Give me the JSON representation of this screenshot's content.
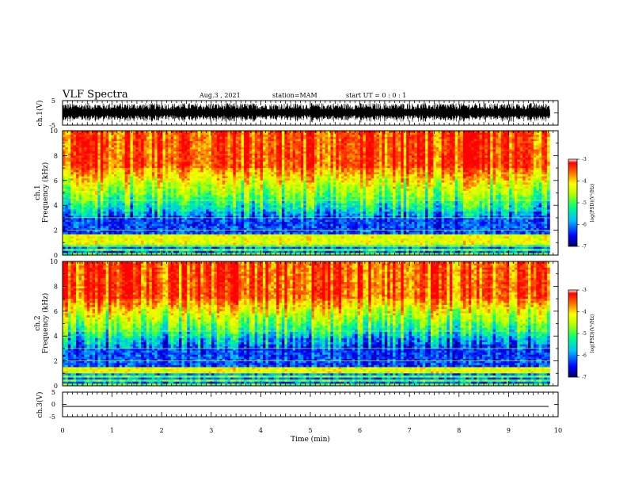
{
  "header": {
    "title": "VLF Spectra",
    "date": "Aug.3  , 2021",
    "station": "station=MAM",
    "start_ut": "start  UT  =   0 : 0  : 1"
  },
  "chart_data": {
    "type": "heatmap",
    "x": {
      "label": "Time  (min)",
      "range": [
        0,
        10
      ],
      "ticks": [
        "0",
        "1",
        "2",
        "3",
        "4",
        "5",
        "6",
        "7",
        "8",
        "9",
        "10"
      ],
      "data_end": 9.83
    },
    "panels": [
      {
        "id": "ch1_waveform",
        "type": "line",
        "ylabel": "ch.1(V)",
        "ylim": [
          -5,
          5
        ],
        "yticks": [
          "5",
          "-5"
        ],
        "description_values": {
          "min_v": -5,
          "max_v": 5,
          "noise_amplitude_v": 4
        }
      },
      {
        "id": "ch1_spectrogram",
        "type": "heatmap",
        "ylabel": "ch.1\nFrequency  (kHz)",
        "ylabel_lines": [
          "ch.1",
          "Frequency  (kHz)"
        ],
        "ylim": [
          0,
          10
        ],
        "yticks": [
          "0",
          "2",
          "4",
          "6",
          "8",
          "10"
        ],
        "colorbar": {
          "label": "log(PSD)(V²/Hz)",
          "range": [
            -7,
            -3
          ],
          "ticks": [
            "-3",
            "-4",
            "-5",
            "-6",
            "-7"
          ]
        },
        "bands_khz": {
          "strong_low": [
            0.9,
            1.6
          ],
          "quiet_trough": [
            1.7,
            3.2
          ],
          "rise_start": 3.5,
          "saturated_above": 7.0
        }
      },
      {
        "id": "ch2_spectrogram",
        "type": "heatmap",
        "ylabel_lines": [
          "ch.2",
          "Frequency  (kHz)"
        ],
        "ylim": [
          0,
          10
        ],
        "yticks": [
          "0",
          "2",
          "4",
          "6",
          "8",
          "10"
        ],
        "colorbar": {
          "label": "log(PSD)(V²/Hz)",
          "range": [
            -7,
            -3
          ],
          "ticks": [
            "-3",
            "-4",
            "-5",
            "-6",
            "-7"
          ]
        },
        "bands_khz": {
          "strong_low": [
            1.0,
            1.5
          ],
          "quiet_trough": [
            1.8,
            3.4
          ],
          "rise_start": 3.8,
          "saturated_above": 7.0
        }
      },
      {
        "id": "ch3_waveform",
        "type": "line",
        "ylabel": "ch.3(V)",
        "ylim": [
          -5,
          5
        ],
        "yticks": [
          "5",
          "0",
          "-5"
        ],
        "description_values": {
          "constant_v": -2.2
        }
      }
    ],
    "colormap": [
      "#00007f",
      "#0000ff",
      "#00bfff",
      "#00ff7f",
      "#7fff00",
      "#ffff00",
      "#ff7f00",
      "#ff0000"
    ]
  }
}
